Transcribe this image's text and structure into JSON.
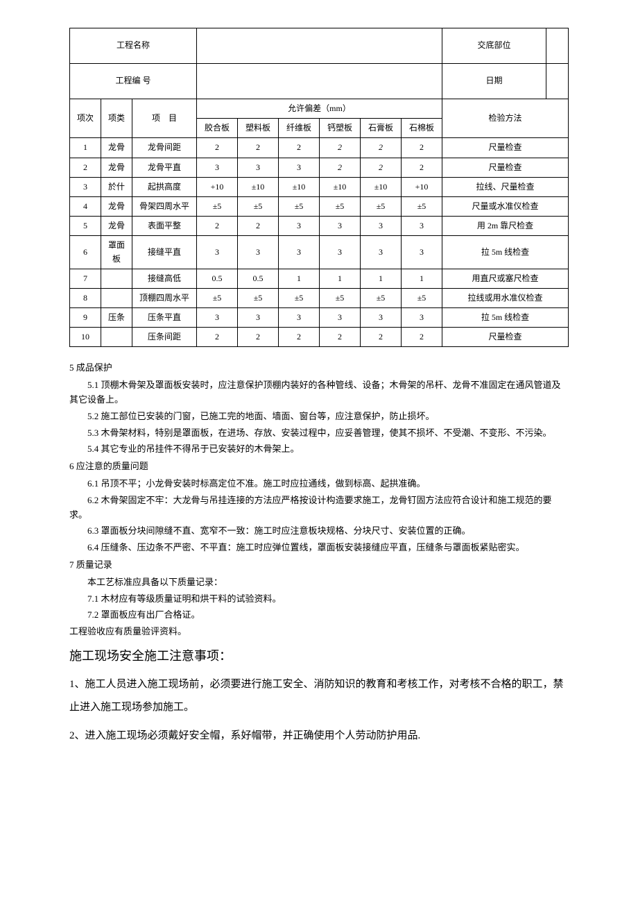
{
  "header_table": {
    "row1_label": "工程名称",
    "row1_val1": "",
    "row1_label2": "交底部位",
    "row1_val2": "",
    "row2_label": "工程编 号",
    "row2_val1": "",
    "row2_label2": "日期",
    "row2_val2": ""
  },
  "main_table": {
    "headers": {
      "col1": "项次",
      "col2": "项类",
      "col3": "项　目",
      "col4": "允许偏差（mm）",
      "col5": "检验方法",
      "sub1": "胶合板",
      "sub2": "塑料板",
      "sub3": "纤维板",
      "sub4": "钙塑板",
      "sub5": "石膏板",
      "sub6": "石棉板"
    },
    "rows": [
      {
        "n": "1",
        "cat": "龙骨",
        "item": "龙骨间距",
        "v": [
          "2",
          "2",
          "2",
          "2",
          "2",
          "2"
        ],
        "italic45": true,
        "method": "尺量检查"
      },
      {
        "n": "2",
        "cat": "龙骨",
        "item": "龙骨平直",
        "v": [
          "3",
          "3",
          "3",
          "2",
          "2",
          "2"
        ],
        "italic45": true,
        "method": "尺量检查"
      },
      {
        "n": "3",
        "cat": "於什",
        "item": "起拱高度",
        "v": [
          "+10",
          "±10",
          "±10",
          "±10",
          "±10",
          "+10"
        ],
        "method": "拉线、尺量检查"
      },
      {
        "n": "4",
        "cat": "龙骨",
        "item": "骨架四周水平",
        "v": [
          "±5",
          "±5",
          "±5",
          "±5",
          "±5",
          "±5"
        ],
        "method": "尺量或水准仪检查"
      },
      {
        "n": "5",
        "cat": "龙骨",
        "item": "表面平整",
        "v": [
          "2",
          "2",
          "3",
          "3",
          "3",
          "3"
        ],
        "method": "用 2m 靠尺检查"
      },
      {
        "n": "6",
        "cat": "罩面板",
        "item": "接缝平直",
        "v": [
          "3",
          "3",
          "3",
          "3",
          "3",
          "3"
        ],
        "method": "拉 5m 线检查"
      },
      {
        "n": "7",
        "cat": "",
        "item": "接缝高低",
        "v": [
          "0.5",
          "0.5",
          "1",
          "1",
          "1",
          "1"
        ],
        "method": "用直尺或塞尺检查"
      },
      {
        "n": "8",
        "cat": "",
        "item": "顶棚四周水平",
        "v": [
          "±5",
          "±5",
          "±5",
          "±5",
          "±5",
          "±5"
        ],
        "method": "拉线或用水准仪检查"
      },
      {
        "n": "9",
        "cat": "压条",
        "item": "压条平直",
        "v": [
          "3",
          "3",
          "3",
          "3",
          "3",
          "3"
        ],
        "method": "拉 5m 线检查"
      },
      {
        "n": "10",
        "cat": "",
        "item": "压条间距",
        "v": [
          "2",
          "2",
          "2",
          "2",
          "2",
          "2"
        ],
        "method": "尺量检查"
      }
    ]
  },
  "sections": {
    "s5": {
      "title": "5 成品保护",
      "p1": "5.1   顶棚木骨架及罩面板安装时，应注意保护顶棚内装好的各种管线、设备；木骨架的吊杆、龙骨不准固定在通风管道及其它设备上。",
      "p2": "5.2         施工部位已安装的门窗，已施工完的地面、墙面、窗台等，应注意保护，防止损坏。",
      "p3": "5.3   木骨架材料，特别是罩面板，在进场、存放、安装过程中，应妥善管理，使其不损坏、不受潮、不变形、不污染。",
      "p4": "5.4         其它专业的吊挂件不得吊于已安装好的木骨架上。"
    },
    "s6": {
      "title": "6 应注意的质量问题",
      "p1": "6.1   吊顶不平；小龙骨安装时标高定位不准。施工时应拉通线，做到标高、起拱准确。",
      "p2": "6.2   木骨架固定不牢：大龙骨与吊挂连接的方法应严格按设计构造要求施工，龙骨钉固方法应符合设计和施工规范的要求。",
      "p3": "6.3   罩面板分块间隙缝不直、宽窄不一致：施工时应注意板块规格、分块尺寸、安装位置的正确。",
      "p4": "6.4   压缝条、压边条不严密、不平直：施工时应弹位置线，罩面板安装接缝应平直，压缝条与罩面板紧贴密实。"
    },
    "s7": {
      "title": "7 质量记录",
      "p0": "本工艺标准应具备以下质量记录：",
      "p1": "7.1   木材应有等级质量证明和烘干料的试验资料。",
      "p2": "7.2   罩面板应有出厂合格证。",
      "p3": "工程验收应有质量验评资料。"
    },
    "safety": {
      "title": "施工现场安全施工注意事项：",
      "p1": "1、施工人员进入施工现场前，必须要进行施工安全、消防知识的教育和考核工作，对考核不合格的职工，禁止进入施工现场参加施工。",
      "p2": "2、进入施工现场必须戴好安全帽，系好帽带，并正确使用个人劳动防护用品."
    }
  }
}
